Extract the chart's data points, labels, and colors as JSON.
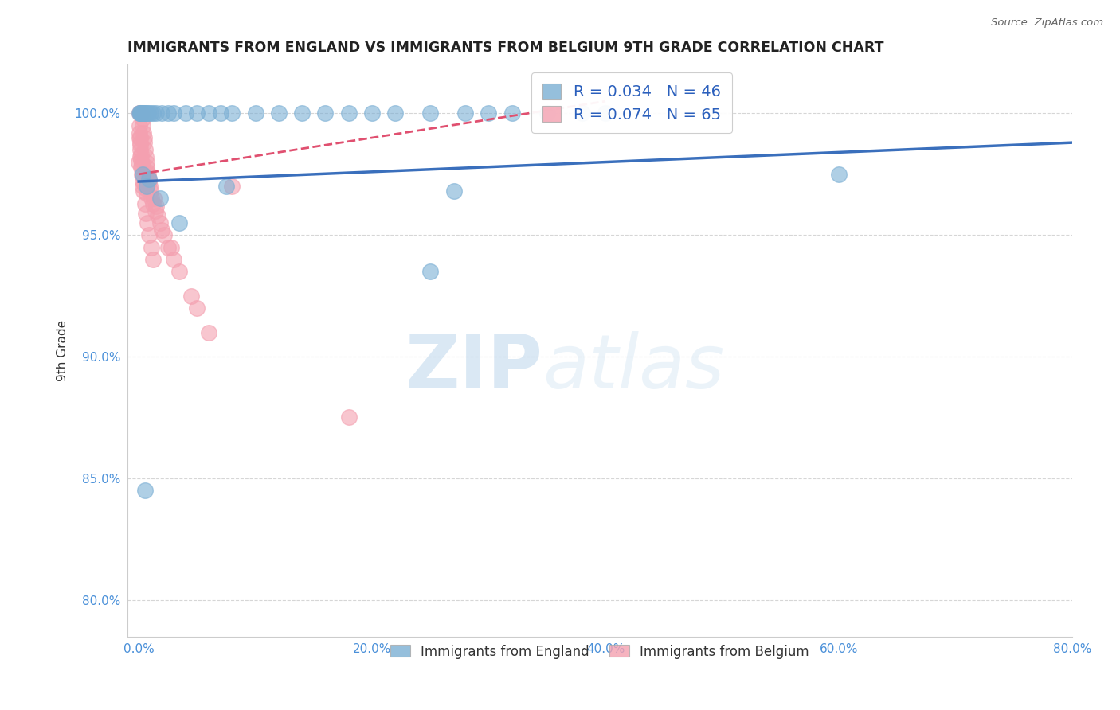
{
  "title": "IMMIGRANTS FROM ENGLAND VS IMMIGRANTS FROM BELGIUM 9TH GRADE CORRELATION CHART",
  "source": "Source: ZipAtlas.com",
  "xlabel_vals": [
    0.0,
    20.0,
    40.0,
    60.0,
    80.0
  ],
  "ylabel_vals": [
    80.0,
    85.0,
    90.0,
    95.0,
    100.0
  ],
  "xlim": [
    -1.0,
    80.0
  ],
  "ylim": [
    78.5,
    102.0
  ],
  "ylabel_label": "9th Grade",
  "legend_england": "Immigrants from England",
  "legend_belgium": "Immigrants from Belgium",
  "R_england": 0.034,
  "N_england": 46,
  "R_belgium": 0.074,
  "N_belgium": 65,
  "color_england": "#7bafd4",
  "color_belgium": "#f4a0b0",
  "trendline_england_color": "#3a6fbc",
  "trendline_belgium_color": "#e05070",
  "eng_x": [
    0.05,
    0.1,
    0.15,
    0.2,
    0.25,
    0.3,
    0.4,
    0.5,
    0.6,
    0.7,
    0.8,
    1.0,
    1.2,
    1.5,
    2.0,
    2.5,
    3.0,
    4.0,
    5.0,
    6.0,
    7.0,
    8.0,
    10.0,
    12.0,
    14.0,
    16.0,
    18.0,
    20.0,
    22.0,
    25.0,
    28.0,
    30.0,
    32.0,
    35.0,
    38.0,
    40.0,
    0.35,
    0.65,
    0.9,
    1.8,
    3.5,
    7.5,
    27.0,
    60.0,
    0.55,
    25.0
  ],
  "eng_y": [
    100.0,
    100.0,
    100.0,
    100.0,
    100.0,
    100.0,
    100.0,
    100.0,
    100.0,
    100.0,
    100.0,
    100.0,
    100.0,
    100.0,
    100.0,
    100.0,
    100.0,
    100.0,
    100.0,
    100.0,
    100.0,
    100.0,
    100.0,
    100.0,
    100.0,
    100.0,
    100.0,
    100.0,
    100.0,
    100.0,
    100.0,
    100.0,
    100.0,
    100.0,
    100.0,
    100.0,
    97.5,
    97.0,
    97.3,
    96.5,
    95.5,
    97.0,
    96.8,
    97.5,
    84.5,
    93.5
  ],
  "bel_x": [
    0.05,
    0.1,
    0.15,
    0.2,
    0.25,
    0.3,
    0.35,
    0.4,
    0.45,
    0.5,
    0.55,
    0.6,
    0.65,
    0.7,
    0.75,
    0.8,
    0.85,
    0.9,
    0.95,
    1.0,
    1.1,
    1.2,
    1.4,
    1.6,
    1.8,
    2.0,
    2.5,
    3.0,
    0.05,
    0.1,
    0.15,
    0.2,
    0.25,
    0.3,
    0.35,
    0.05,
    0.1,
    0.15,
    0.08,
    0.12,
    0.18,
    0.22,
    0.28,
    0.38,
    0.48,
    0.58,
    0.68,
    1.5,
    2.2,
    3.5,
    5.0,
    0.0,
    1.3,
    2.8,
    4.5,
    6.0,
    8.0,
    18.0,
    0.42,
    0.52,
    0.62,
    0.72,
    0.88,
    1.05,
    1.25
  ],
  "bel_y": [
    100.0,
    100.0,
    100.0,
    100.0,
    100.0,
    99.8,
    99.5,
    99.2,
    99.0,
    98.8,
    98.5,
    98.2,
    98.0,
    97.8,
    97.6,
    97.5,
    97.3,
    97.2,
    97.0,
    96.8,
    96.5,
    96.3,
    96.0,
    95.8,
    95.5,
    95.2,
    94.5,
    94.0,
    99.0,
    98.5,
    98.2,
    97.8,
    97.5,
    97.2,
    97.0,
    99.5,
    99.0,
    98.8,
    99.2,
    98.7,
    98.3,
    98.1,
    97.9,
    97.4,
    97.1,
    96.9,
    96.7,
    96.2,
    95.0,
    93.5,
    92.0,
    98.0,
    96.5,
    94.5,
    92.5,
    91.0,
    97.0,
    87.5,
    96.8,
    96.3,
    95.9,
    95.5,
    95.0,
    94.5,
    94.0
  ],
  "watermark_zip": "ZIP",
  "watermark_atlas": "atlas",
  "background_color": "#ffffff",
  "grid_color": "#bbbbbb",
  "trendline_eng_x0": 0.0,
  "trendline_eng_y0": 97.2,
  "trendline_eng_x1": 80.0,
  "trendline_eng_y1": 98.8,
  "trendline_bel_x0": 0.0,
  "trendline_bel_y0": 97.5,
  "trendline_bel_x1": 40.0,
  "trendline_bel_y1": 100.5
}
